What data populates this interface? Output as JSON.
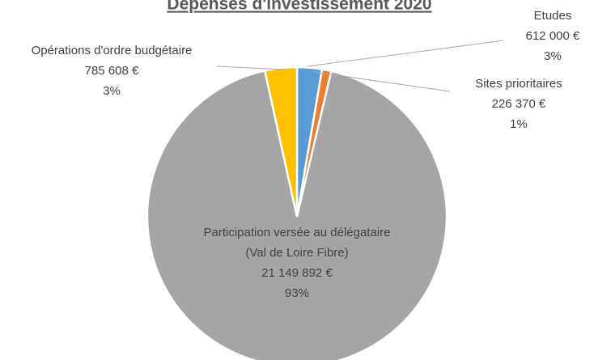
{
  "chart_data": {
    "type": "pie",
    "title": "Dépenses d'investissement 2020",
    "categories": [
      [
        "Etudes"
      ],
      [
        "Sites prioritaires"
      ],
      [
        "Participation versée au délégataire",
        "(Val de Loire Fibre)"
      ],
      [
        "Opérations d'ordre budgétaire"
      ]
    ],
    "values": [
      612000,
      226370,
      21149892,
      785608
    ],
    "value_labels": [
      "612 000 €",
      "226 370 €",
      "21 149 892 €",
      "785 608 €"
    ],
    "percentages": [
      3,
      1,
      93,
      3
    ],
    "percentage_labels": [
      "3%",
      "1%",
      "93%",
      "3%"
    ],
    "colors": [
      "#5b9bd5",
      "#ed7d31",
      "#a5a5a5",
      "#ffc000"
    ]
  }
}
